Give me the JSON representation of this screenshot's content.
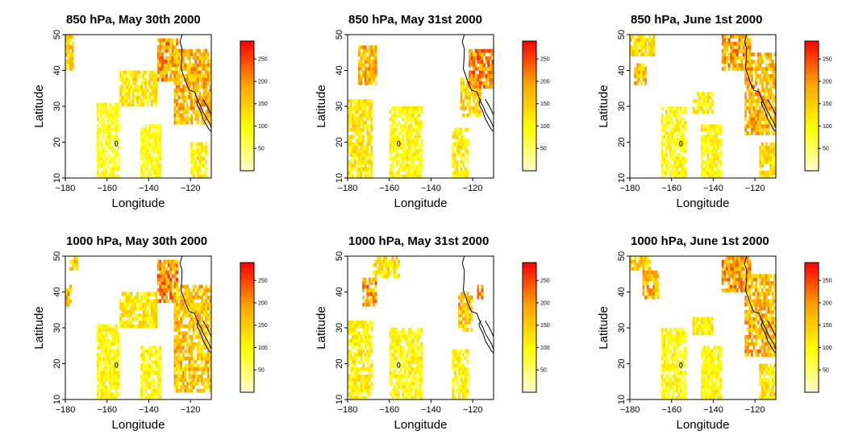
{
  "chart_data": [
    {
      "type": "heatmap",
      "title": "850 hPa, May 30th 2000",
      "xlabel": "Longitude",
      "ylabel": "Latitude",
      "xlim": [
        -180,
        -110
      ],
      "ylim": [
        10,
        50
      ],
      "xticks": [
        -180,
        -160,
        -140,
        -120
      ],
      "yticks": [
        10,
        20,
        30,
        40,
        50
      ],
      "colorbar": {
        "min": 0,
        "max": 290,
        "ticks": [
          50,
          100,
          150,
          200,
          250
        ],
        "colors": [
          "#fffdd0",
          "#ffff00",
          "#ffa500",
          "#ff0000"
        ]
      },
      "regions": [
        {
          "lon": [
            -180,
            -176
          ],
          "lat": [
            40,
            50
          ],
          "value": 150
        },
        {
          "lon": [
            -165,
            -154
          ],
          "lat": [
            10,
            31
          ],
          "value": 90
        },
        {
          "lon": [
            -144,
            -134
          ],
          "lat": [
            10,
            25
          ],
          "value": 90
        },
        {
          "lon": [
            -154,
            -136
          ],
          "lat": [
            30,
            40
          ],
          "value": 120
        },
        {
          "lon": [
            -136,
            -126
          ],
          "lat": [
            37,
            49
          ],
          "value": 190
        },
        {
          "lon": [
            -128,
            -110
          ],
          "lat": [
            25,
            46
          ],
          "value": 170
        },
        {
          "lon": [
            -120,
            -112
          ],
          "lat": [
            10,
            20
          ],
          "value": 110
        }
      ]
    },
    {
      "type": "heatmap",
      "title": "850 hPa, May 31st 2000",
      "xlabel": "Longitude",
      "ylabel": "Latitude",
      "xlim": [
        -180,
        -110
      ],
      "ylim": [
        10,
        50
      ],
      "xticks": [
        -180,
        -160,
        -140,
        -120
      ],
      "yticks": [
        10,
        20,
        30,
        40,
        50
      ],
      "colorbar": {
        "min": 0,
        "max": 290,
        "ticks": [
          50,
          100,
          150,
          200,
          250
        ],
        "colors": [
          "#fffdd0",
          "#ffff00",
          "#ffa500",
          "#ff0000"
        ]
      },
      "regions": [
        {
          "lon": [
            -180,
            -168
          ],
          "lat": [
            10,
            32
          ],
          "value": 120
        },
        {
          "lon": [
            -175,
            -166
          ],
          "lat": [
            36,
            47
          ],
          "value": 170
        },
        {
          "lon": [
            -160,
            -144
          ],
          "lat": [
            10,
            30
          ],
          "value": 100
        },
        {
          "lon": [
            -130,
            -122
          ],
          "lat": [
            10,
            24
          ],
          "value": 110
        },
        {
          "lon": [
            -126,
            -116
          ],
          "lat": [
            27,
            38
          ],
          "value": 140
        },
        {
          "lon": [
            -122,
            -110
          ],
          "lat": [
            35,
            46
          ],
          "value": 200
        }
      ]
    },
    {
      "type": "heatmap",
      "title": "850 hPa, June 1st 2000",
      "xlabel": "Longitude",
      "ylabel": "Latitude",
      "xlim": [
        -180,
        -110
      ],
      "ylim": [
        10,
        50
      ],
      "xticks": [
        -180,
        -160,
        -140,
        -120
      ],
      "yticks": [
        10,
        20,
        30,
        40,
        50
      ],
      "colorbar": {
        "min": 0,
        "max": 290,
        "ticks": [
          50,
          100,
          150,
          200,
          250
        ],
        "colors": [
          "#fffdd0",
          "#ffff00",
          "#ffa500",
          "#ff0000"
        ]
      },
      "regions": [
        {
          "lon": [
            -180,
            -168
          ],
          "lat": [
            44,
            50
          ],
          "value": 140
        },
        {
          "lon": [
            -178,
            -172
          ],
          "lat": [
            36,
            42
          ],
          "value": 160
        },
        {
          "lon": [
            -165,
            -153
          ],
          "lat": [
            10,
            30
          ],
          "value": 100
        },
        {
          "lon": [
            -146,
            -136
          ],
          "lat": [
            10,
            25
          ],
          "value": 100
        },
        {
          "lon": [
            -150,
            -140
          ],
          "lat": [
            28,
            34
          ],
          "value": 110
        },
        {
          "lon": [
            -136,
            -122
          ],
          "lat": [
            40,
            50
          ],
          "value": 190
        },
        {
          "lon": [
            -125,
            -110
          ],
          "lat": [
            22,
            45
          ],
          "value": 170
        },
        {
          "lon": [
            -118,
            -110
          ],
          "lat": [
            10,
            20
          ],
          "value": 130
        }
      ]
    },
    {
      "type": "heatmap",
      "title": "1000 hPa, May 30th 2000",
      "xlabel": "Longitude",
      "ylabel": "Latitude",
      "xlim": [
        -180,
        -110
      ],
      "ylim": [
        10,
        50
      ],
      "xticks": [
        -180,
        -160,
        -140,
        -120
      ],
      "yticks": [
        10,
        20,
        30,
        40,
        50
      ],
      "colorbar": {
        "min": 0,
        "max": 290,
        "ticks": [
          50,
          100,
          150,
          200,
          250
        ],
        "colors": [
          "#fffdd0",
          "#ffff00",
          "#ffa500",
          "#ff0000"
        ]
      },
      "regions": [
        {
          "lon": [
            -178,
            -174
          ],
          "lat": [
            46,
            50
          ],
          "value": 150
        },
        {
          "lon": [
            -180,
            -177
          ],
          "lat": [
            36,
            42
          ],
          "value": 170
        },
        {
          "lon": [
            -165,
            -154
          ],
          "lat": [
            10,
            31
          ],
          "value": 100
        },
        {
          "lon": [
            -144,
            -134
          ],
          "lat": [
            10,
            25
          ],
          "value": 100
        },
        {
          "lon": [
            -154,
            -136
          ],
          "lat": [
            30,
            40
          ],
          "value": 120
        },
        {
          "lon": [
            -136,
            -126
          ],
          "lat": [
            37,
            49
          ],
          "value": 200
        },
        {
          "lon": [
            -128,
            -110
          ],
          "lat": [
            12,
            42
          ],
          "value": 160
        }
      ]
    },
    {
      "type": "heatmap",
      "title": "1000 hPa, May 31st 2000",
      "xlabel": "Longitude",
      "ylabel": "Latitude",
      "xlim": [
        -180,
        -110
      ],
      "ylim": [
        10,
        50
      ],
      "xticks": [
        -180,
        -160,
        -140,
        -120
      ],
      "yticks": [
        10,
        20,
        30,
        40,
        50
      ],
      "colorbar": {
        "min": 0,
        "max": 290,
        "ticks": [
          50,
          100,
          150,
          200,
          250
        ],
        "colors": [
          "#fffdd0",
          "#ffff00",
          "#ffa500",
          "#ff0000"
        ]
      },
      "regions": [
        {
          "lon": [
            -180,
            -168
          ],
          "lat": [
            10,
            32
          ],
          "value": 110
        },
        {
          "lon": [
            -173,
            -166
          ],
          "lat": [
            36,
            44
          ],
          "value": 190
        },
        {
          "lon": [
            -168,
            -155
          ],
          "lat": [
            44,
            50
          ],
          "value": 130
        },
        {
          "lon": [
            -160,
            -144
          ],
          "lat": [
            10,
            30
          ],
          "value": 100
        },
        {
          "lon": [
            -130,
            -122
          ],
          "lat": [
            10,
            24
          ],
          "value": 110
        },
        {
          "lon": [
            -127,
            -120
          ],
          "lat": [
            29,
            40
          ],
          "value": 160
        },
        {
          "lon": [
            -118,
            -115
          ],
          "lat": [
            38,
            42
          ],
          "value": 180
        }
      ]
    },
    {
      "type": "heatmap",
      "title": "1000 hPa, June 1st 2000",
      "xlabel": "Longitude",
      "ylabel": "Latitude",
      "xlim": [
        -180,
        -110
      ],
      "ylim": [
        10,
        50
      ],
      "xticks": [
        -180,
        -160,
        -140,
        -120
      ],
      "yticks": [
        10,
        20,
        30,
        40,
        50
      ],
      "colorbar": {
        "min": 0,
        "max": 290,
        "ticks": [
          50,
          100,
          150,
          200,
          250
        ],
        "colors": [
          "#fffdd0",
          "#ffff00",
          "#ffa500",
          "#ff0000"
        ]
      },
      "regions": [
        {
          "lon": [
            -180,
            -170
          ],
          "lat": [
            46,
            50
          ],
          "value": 150
        },
        {
          "lon": [
            -174,
            -166
          ],
          "lat": [
            38,
            46
          ],
          "value": 170
        },
        {
          "lon": [
            -165,
            -153
          ],
          "lat": [
            10,
            30
          ],
          "value": 100
        },
        {
          "lon": [
            -146,
            -136
          ],
          "lat": [
            10,
            25
          ],
          "value": 100
        },
        {
          "lon": [
            -150,
            -140
          ],
          "lat": [
            28,
            33
          ],
          "value": 110
        },
        {
          "lon": [
            -136,
            -122
          ],
          "lat": [
            40,
            50
          ],
          "value": 190
        },
        {
          "lon": [
            -125,
            -110
          ],
          "lat": [
            22,
            45
          ],
          "value": 170
        },
        {
          "lon": [
            -118,
            -110
          ],
          "lat": [
            10,
            20
          ],
          "value": 130
        }
      ]
    }
  ]
}
